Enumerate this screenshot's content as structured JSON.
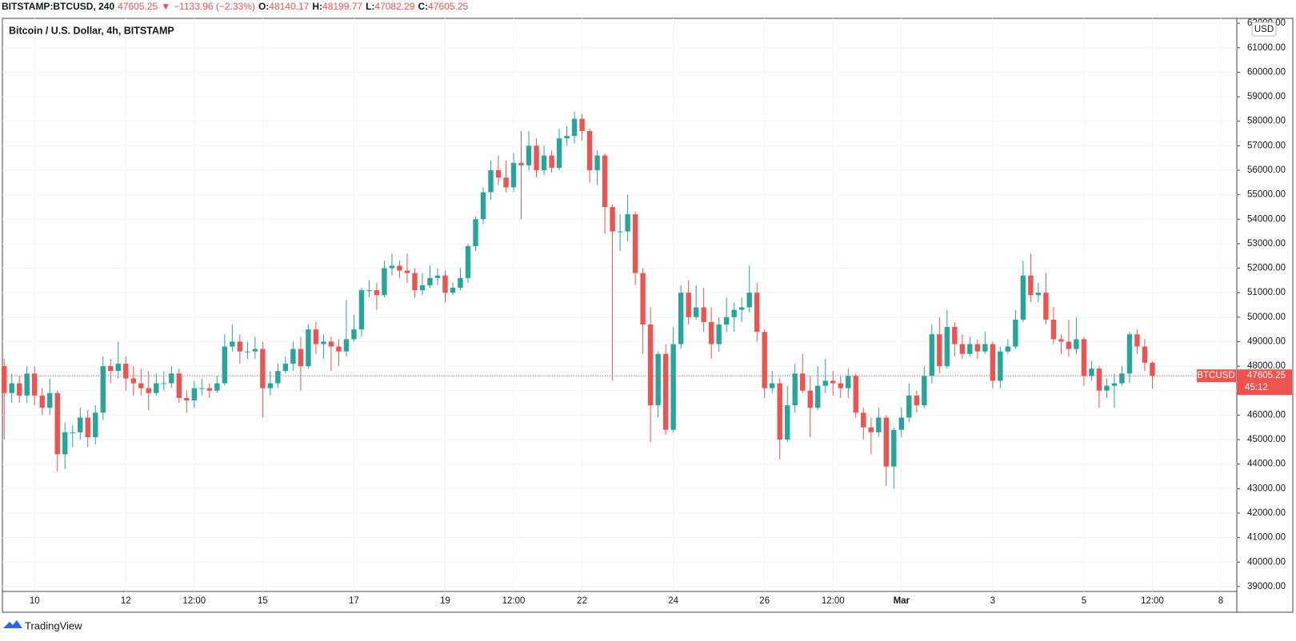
{
  "header": {
    "symbol": "BITSTAMP:BTCUSD, 240",
    "arrow": "▼",
    "change": "−1133.96 (−2.33%)",
    "o": "O:",
    "h": "H:",
    "l": "L:",
    "c": "C:"
  },
  "footer": {
    "brand": "TradingView"
  },
  "chart_data": {
    "type": "candlestick",
    "title": "Bitcoin / U.S. Dollar, 4h, BITSTAMP",
    "currency": "USD",
    "last_label": "BTCUSD",
    "countdown": "45:12",
    "up_color": "#26a69a",
    "down_color": "#ef5350",
    "grid": true,
    "ylim": [
      38800,
      62200
    ],
    "yticks": [
      {
        "value": 39000,
        "label": "39000.00"
      },
      {
        "value": 40000,
        "label": "40000.00"
      },
      {
        "value": 41000,
        "label": "41000.00"
      },
      {
        "value": 42000,
        "label": "42000.00"
      },
      {
        "value": 43000,
        "label": "43000.00"
      },
      {
        "value": 44000,
        "label": "44000.00"
      },
      {
        "value": 45000,
        "label": "45000.00"
      },
      {
        "value": 46000,
        "label": "46000.00"
      },
      {
        "value": 47000,
        "label": "47000.00"
      },
      {
        "value": 48000,
        "label": "48000.00"
      },
      {
        "value": 49000,
        "label": "49000.00"
      },
      {
        "value": 50000,
        "label": "50000.00"
      },
      {
        "value": 51000,
        "label": "51000.00"
      },
      {
        "value": 52000,
        "label": "52000.00"
      },
      {
        "value": 53000,
        "label": "53000.00"
      },
      {
        "value": 54000,
        "label": "54000.00"
      },
      {
        "value": 55000,
        "label": "55000.00"
      },
      {
        "value": 56000,
        "label": "56000.00"
      },
      {
        "value": 57000,
        "label": "57000.00"
      },
      {
        "value": 58000,
        "label": "58000.00"
      },
      {
        "value": 59000,
        "label": "59000.00"
      },
      {
        "value": 60000,
        "label": "60000.00"
      },
      {
        "value": 61000,
        "label": "61000.00"
      },
      {
        "value": 62000,
        "label": "62000.00"
      }
    ],
    "categories": [
      null,
      null,
      null,
      null,
      "10",
      null,
      null,
      null,
      null,
      null,
      null,
      null,
      null,
      null,
      null,
      null,
      "12",
      null,
      null,
      null,
      null,
      null,
      null,
      null,
      null,
      "12:00",
      null,
      null,
      null,
      null,
      null,
      null,
      null,
      null,
      "15",
      null,
      null,
      null,
      null,
      null,
      null,
      null,
      null,
      null,
      null,
      null,
      "17",
      null,
      null,
      null,
      null,
      null,
      null,
      null,
      null,
      null,
      null,
      null,
      "19",
      null,
      null,
      null,
      null,
      null,
      null,
      null,
      null,
      "12:00",
      null,
      null,
      null,
      null,
      null,
      null,
      null,
      null,
      "22",
      null,
      null,
      null,
      null,
      null,
      null,
      null,
      null,
      null,
      null,
      null,
      "24",
      null,
      null,
      null,
      null,
      null,
      null,
      null,
      null,
      null,
      null,
      null,
      "26",
      null,
      null,
      null,
      null,
      null,
      null,
      null,
      null,
      "12:00",
      null,
      null,
      null,
      null,
      null,
      null,
      null,
      null,
      "Mar",
      null,
      null,
      null,
      null,
      null,
      null,
      null,
      null,
      null,
      null,
      null,
      "3",
      null,
      null,
      null,
      null,
      null,
      null,
      null,
      null,
      null,
      null,
      null,
      "5",
      null,
      null,
      null,
      null,
      null,
      null,
      null,
      null,
      "12:00",
      null,
      null,
      null,
      null,
      null,
      null,
      null,
      null,
      "8"
    ],
    "open": [
      48000,
      46900,
      47300,
      46800,
      47700,
      46800,
      46300,
      46900,
      44400,
      45300,
      45300,
      45900,
      45100,
      46100,
      48000,
      47800,
      48100,
      47500,
      47300,
      47100,
      46900,
      47300,
      47300,
      47700,
      46700,
      46600,
      47100,
      47100,
      47000,
      47300,
      48800,
      49000,
      48600,
      48600,
      48700,
      47100,
      47300,
      47800,
      48100,
      48700,
      48000,
      49500,
      48900,
      49000,
      48800,
      48600,
      49100,
      49500,
      51100,
      51100,
      50900,
      52000,
      52100,
      51900,
      51800,
      51100,
      51300,
      51600,
      51700,
      51000,
      51200,
      51600,
      52900,
      54000,
      55100,
      56000,
      55700,
      55300,
      56300,
      56200,
      57000,
      56000,
      56600,
      56100,
      57300,
      57400,
      58100,
      57600,
      56000,
      56600,
      54500,
      53500,
      53500,
      54200,
      51800,
      49700,
      46400,
      48500,
      45400,
      48900,
      51000,
      50000,
      50400,
      49800,
      48900,
      49700,
      50000,
      50300,
      50400,
      51000,
      49400,
      47100,
      47300,
      45000,
      46400,
      47700,
      47000,
      46300,
      47200,
      47400,
      47300,
      47100,
      47600,
      46100,
      45500,
      45300,
      45900,
      43900,
      45400,
      45900,
      46800,
      46400,
      47600,
      49300,
      48000,
      49600,
      48900,
      48500,
      48900,
      48600,
      48900,
      47400,
      48600,
      48800,
      49900,
      51700,
      50900,
      51000,
      49900,
      49100,
      49000,
      48700,
      49100,
      47600,
      47900,
      47000,
      47200,
      47300,
      47700,
      49300,
      48800,
      48140.17,
      null,
      null,
      null,
      null,
      null,
      null,
      null,
      null,
      null
    ],
    "high": [
      48300,
      47700,
      47600,
      48000,
      48000,
      47100,
      47500,
      47000,
      45700,
      45600,
      46300,
      46200,
      46400,
      48400,
      48300,
      49000,
      48400,
      48000,
      47900,
      47800,
      47700,
      47800,
      48000,
      47900,
      47000,
      47400,
      47500,
      47300,
      47600,
      49300,
      49700,
      49300,
      49000,
      49200,
      49000,
      47800,
      48100,
      48400,
      49000,
      49200,
      49700,
      49800,
      49300,
      49200,
      49100,
      50700,
      50100,
      51200,
      51500,
      51400,
      52300,
      52600,
      52300,
      52600,
      52000,
      51800,
      52100,
      52000,
      51900,
      51400,
      52000,
      53000,
      54100,
      55300,
      56400,
      56600,
      56400,
      56700,
      57600,
      57600,
      57300,
      57000,
      56800,
      57700,
      57800,
      58400,
      58300,
      57700,
      56800,
      56700,
      54600,
      54200,
      55000,
      54300,
      52000,
      50400,
      48600,
      48900,
      49600,
      51300,
      51500,
      51300,
      51200,
      50400,
      50000,
      50800,
      50600,
      50800,
      52100,
      51400,
      49500,
      47800,
      47500,
      47200,
      48100,
      48500,
      47600,
      48000,
      48300,
      47800,
      47600,
      47900,
      47700,
      46300,
      45900,
      46300,
      46000,
      45500,
      46300,
      47300,
      47000,
      48000,
      49700,
      50000,
      50300,
      49800,
      49300,
      49200,
      49100,
      49400,
      49000,
      48800,
      49100,
      50300,
      52300,
      52600,
      51400,
      51800,
      50400,
      49300,
      49900,
      50000,
      49200,
      48200,
      48000,
      47500,
      47700,
      48000,
      49400,
      49500,
      49100,
      48199.77,
      null,
      null,
      null,
      null,
      null,
      null,
      null,
      null,
      null
    ],
    "low": [
      45000,
      46500,
      46500,
      46500,
      46400,
      46000,
      46000,
      43700,
      43800,
      44700,
      45000,
      44700,
      44800,
      45800,
      47300,
      47500,
      47000,
      46800,
      46800,
      46200,
      46800,
      47000,
      47100,
      46500,
      46100,
      46300,
      46800,
      46700,
      46900,
      47200,
      48600,
      48100,
      48300,
      48300,
      45900,
      46800,
      47100,
      47700,
      47800,
      47000,
      47900,
      48500,
      48300,
      47800,
      48000,
      48400,
      49000,
      49200,
      50800,
      50300,
      50800,
      51700,
      51600,
      51400,
      50800,
      50900,
      51200,
      51300,
      50600,
      50900,
      51100,
      51400,
      52700,
      53800,
      54800,
      55400,
      55100,
      55100,
      54000,
      56000,
      55700,
      55800,
      55900,
      56000,
      57000,
      57100,
      57200,
      55500,
      55400,
      53400,
      47400,
      52700,
      53100,
      51300,
      48500,
      44900,
      45900,
      45200,
      45300,
      48700,
      49700,
      49900,
      49400,
      48300,
      48600,
      49400,
      49400,
      49800,
      50200,
      49000,
      46700,
      46900,
      44200,
      44900,
      46100,
      46900,
      45100,
      46200,
      46900,
      46800,
      46700,
      46700,
      45900,
      45000,
      44400,
      45100,
      43100,
      43000,
      45100,
      45700,
      46100,
      46300,
      47300,
      47700,
      47900,
      48400,
      48300,
      48400,
      48300,
      48500,
      47100,
      47100,
      48500,
      48700,
      49800,
      50600,
      50600,
      49700,
      48900,
      48500,
      48400,
      48500,
      47200,
      47400,
      46300,
      46700,
      46300,
      47200,
      47300,
      48500,
      47800,
      47082.29,
      null,
      null,
      null,
      null,
      null,
      null,
      null,
      null,
      null
    ],
    "close": [
      46900,
      47300,
      46800,
      47700,
      46800,
      46300,
      46900,
      44400,
      45300,
      45300,
      45900,
      45100,
      46100,
      48000,
      47800,
      48100,
      47500,
      47300,
      47100,
      46900,
      47300,
      47300,
      47700,
      46700,
      46600,
      47100,
      47100,
      47000,
      47300,
      48800,
      49000,
      48600,
      48600,
      48700,
      47100,
      47300,
      47800,
      48100,
      48700,
      48000,
      49500,
      48900,
      49000,
      48800,
      48600,
      49100,
      49500,
      51100,
      51100,
      50900,
      52000,
      52100,
      51900,
      51800,
      51100,
      51300,
      51600,
      51700,
      51000,
      51200,
      51600,
      52900,
      54000,
      55100,
      56000,
      55700,
      55300,
      56300,
      56200,
      57000,
      56000,
      56600,
      56100,
      57300,
      57400,
      58100,
      57600,
      56000,
      56600,
      54500,
      53500,
      53500,
      54200,
      51800,
      49700,
      46400,
      48500,
      45400,
      48900,
      51000,
      50000,
      50400,
      49800,
      48900,
      49700,
      50000,
      50300,
      50400,
      51000,
      49400,
      47100,
      47300,
      45000,
      46400,
      47700,
      47000,
      46300,
      47200,
      47400,
      47300,
      47100,
      47600,
      46100,
      45500,
      45300,
      45900,
      43900,
      45400,
      45900,
      46800,
      46400,
      47600,
      49300,
      48000,
      49600,
      48900,
      48500,
      48900,
      48600,
      48900,
      47400,
      48600,
      48800,
      49900,
      51700,
      50900,
      51000,
      49900,
      49100,
      49000,
      48700,
      49100,
      47600,
      47900,
      47000,
      47200,
      47300,
      47700,
      49300,
      48800,
      48140.17,
      47605.25,
      null,
      null,
      null,
      null,
      null,
      null,
      null,
      null,
      null
    ]
  }
}
